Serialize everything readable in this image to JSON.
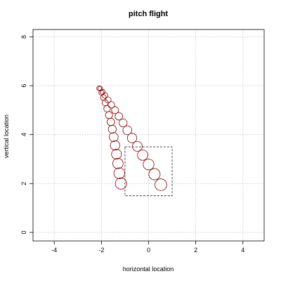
{
  "chart_data": {
    "type": "scatter",
    "title": "pitch flight",
    "xlabel": "horizontal location",
    "ylabel": "vertical location",
    "xlim": [
      -4.9,
      4.9
    ],
    "ylim": [
      -0.35,
      8.3
    ],
    "xticks": [
      -4,
      -2,
      0,
      2,
      4
    ],
    "yticks": [
      0,
      2,
      4,
      6,
      8
    ],
    "grid": true,
    "marker_color": "#8B0000",
    "strike_zone": {
      "x": [
        -1,
        1
      ],
      "y": [
        1.5,
        3.5
      ]
    },
    "series": [
      {
        "values": [
          {
            "x": -2.05,
            "y": 5.88,
            "r": 0.1
          },
          {
            "x": -1.95,
            "y": 5.75,
            "r": 0.11
          },
          {
            "x": -1.85,
            "y": 5.6,
            "r": 0.12
          },
          {
            "x": -1.72,
            "y": 5.42,
            "r": 0.13
          },
          {
            "x": -1.58,
            "y": 5.22,
            "r": 0.14
          },
          {
            "x": -1.42,
            "y": 5.0,
            "r": 0.15
          },
          {
            "x": -1.26,
            "y": 4.75,
            "r": 0.16
          },
          {
            "x": -1.08,
            "y": 4.48,
            "r": 0.17
          },
          {
            "x": -0.9,
            "y": 4.18,
            "r": 0.19
          },
          {
            "x": -0.7,
            "y": 3.86,
            "r": 0.2
          },
          {
            "x": -0.48,
            "y": 3.52,
            "r": 0.21
          },
          {
            "x": -0.25,
            "y": 3.16,
            "r": 0.22
          },
          {
            "x": 0.0,
            "y": 2.78,
            "r": 0.23
          },
          {
            "x": 0.25,
            "y": 2.38,
            "r": 0.24
          },
          {
            "x": 0.52,
            "y": 1.95,
            "r": 0.25
          }
        ]
      },
      {
        "values": [
          {
            "x": -2.1,
            "y": 5.9,
            "r": 0.1
          },
          {
            "x": -2.0,
            "y": 5.72,
            "r": 0.11
          },
          {
            "x": -1.92,
            "y": 5.52,
            "r": 0.12
          },
          {
            "x": -1.84,
            "y": 5.3,
            "r": 0.13
          },
          {
            "x": -1.76,
            "y": 5.06,
            "r": 0.14
          },
          {
            "x": -1.68,
            "y": 4.8,
            "r": 0.15
          },
          {
            "x": -1.6,
            "y": 4.52,
            "r": 0.16
          },
          {
            "x": -1.54,
            "y": 4.22,
            "r": 0.17
          },
          {
            "x": -1.48,
            "y": 3.9,
            "r": 0.19
          },
          {
            "x": -1.42,
            "y": 3.56,
            "r": 0.2
          },
          {
            "x": -1.36,
            "y": 3.2,
            "r": 0.21
          },
          {
            "x": -1.3,
            "y": 2.82,
            "r": 0.22
          },
          {
            "x": -1.24,
            "y": 2.42,
            "r": 0.23
          },
          {
            "x": -1.17,
            "y": 2.0,
            "r": 0.24
          }
        ]
      }
    ]
  }
}
